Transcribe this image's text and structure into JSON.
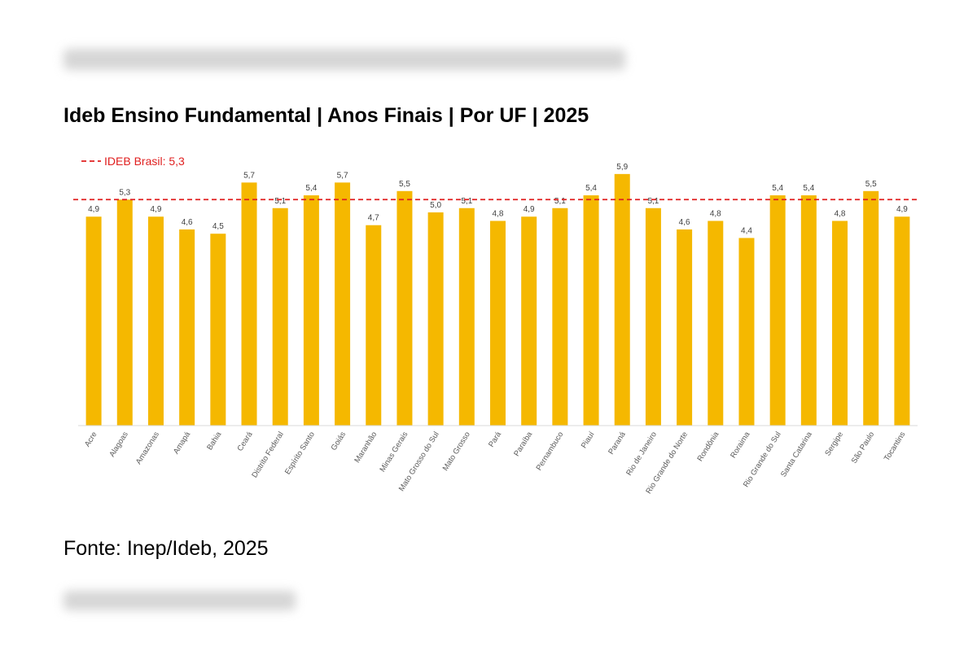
{
  "title": "Ideb Ensino Fundamental | Anos Finais | Por UF | 2025",
  "source": "Fonte: Inep/Ideb, 2025",
  "chart_data": {
    "type": "bar",
    "title": "Ideb Ensino Fundamental | Anos Finais | Por UF | 2025",
    "xlabel": "",
    "ylabel": "",
    "ylim": [
      0,
      6
    ],
    "grid": false,
    "categories": [
      "Acre",
      "Alagoas",
      "Amazonas",
      "Amapá",
      "Bahia",
      "Ceará",
      "Distrito Federal",
      "Espírito Santo",
      "Goiás",
      "Maranhão",
      "Minas Gerais",
      "Mato Grosso do Sul",
      "Mato Grosso",
      "Pará",
      "Paraíba",
      "Pernambuco",
      "Piauí",
      "Paraná",
      "Rio de Janeiro",
      "Rio Grande do Norte",
      "Rondônia",
      "Roraima",
      "Rio Grande do Sul",
      "Santa Catarina",
      "Sergipe",
      "São Paulo",
      "Tocantins"
    ],
    "values": [
      4.9,
      5.3,
      4.9,
      4.6,
      4.5,
      5.7,
      5.1,
      5.4,
      5.7,
      4.7,
      5.5,
      5.0,
      5.1,
      4.8,
      4.9,
      5.1,
      5.4,
      5.9,
      5.1,
      4.6,
      4.8,
      4.4,
      5.4,
      5.4,
      4.8,
      5.5,
      4.9
    ],
    "value_labels": [
      "4,9",
      "5,3",
      "4,9",
      "4,6",
      "4,5",
      "5,7",
      "5,1",
      "5,4",
      "5,7",
      "4,7",
      "5,5",
      "5,0",
      "5,1",
      "4,8",
      "4,9",
      "5,1",
      "5,4",
      "5,9",
      "5,1",
      "4,6",
      "4,8",
      "4,4",
      "5,4",
      "5,4",
      "4,8",
      "5,5",
      "4,9"
    ],
    "bar_color": "#F5B800",
    "reference_line": {
      "value": 5.3,
      "label": "IDEB Brasil: 5,3",
      "color": "#E02020",
      "legend_position": "top-left"
    }
  }
}
